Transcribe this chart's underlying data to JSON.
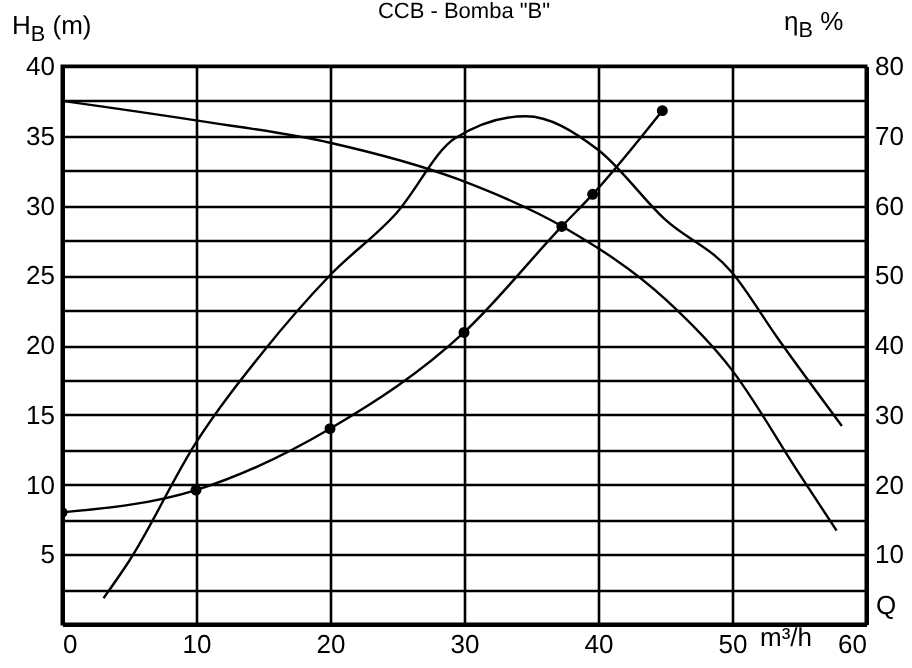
{
  "chart_data": {
    "type": "line",
    "title": "CCB - Bomba \"B\"",
    "xlabel": "m³/h",
    "ylabel": "H$_{B}$ (m)",
    "y2label": "η$_{B}$ %",
    "annotations": [
      "Q"
    ],
    "xlim": [
      0,
      60
    ],
    "xticks": [
      0,
      10,
      20,
      30,
      40,
      50,
      60
    ],
    "ylim": [
      0,
      40
    ],
    "yticks": [
      {
        "value": 0,
        "label": null
      },
      {
        "value": 2.5,
        "label": null
      },
      5,
      {
        "value": 7.5,
        "label": null
      },
      10,
      {
        "value": 12.5,
        "label": null
      },
      15,
      {
        "value": 17.5,
        "label": null
      },
      20,
      {
        "value": 22.5,
        "label": null
      },
      25,
      {
        "value": 27.5,
        "label": null
      },
      30,
      {
        "value": 32.5,
        "label": null
      },
      35,
      {
        "value": 37.5,
        "label": null
      },
      40
    ],
    "y2lim": [
      0,
      80
    ],
    "y2ticks": [
      10,
      20,
      30,
      40,
      50,
      60,
      70,
      80
    ],
    "grid": true,
    "line_style": "solid",
    "series": [
      {
        "color": "#000000",
        "marker": "none",
        "x": [
          0,
          10,
          20,
          29.5,
          37.5,
          45,
          50,
          55,
          57.8
        ],
        "values": [
          37.5,
          36.1,
          34.5,
          31.9,
          28.4,
          23.3,
          18.2,
          10.8,
          6.7
        ]
      },
      {
        "color": "#000000",
        "marker": "circle",
        "x": [
          0,
          10,
          20,
          30,
          37.3,
          39.6,
          44.8
        ],
        "values": [
          8,
          9.6,
          14,
          20.9,
          28.5,
          30.8,
          36.8
        ]
      },
      {
        "color": "#000000",
        "marker": "none",
        "axis": "y2",
        "x": [
          3.1,
          5,
          10,
          15,
          20,
          25,
          29.3,
          34.6,
          40,
          45,
          50,
          53.4,
          58.2
        ],
        "values": [
          3.7,
          9,
          26,
          39,
          50,
          59,
          69.6,
          72.8,
          68,
          58,
          50.4,
          41,
          28.4
        ]
      }
    ]
  }
}
